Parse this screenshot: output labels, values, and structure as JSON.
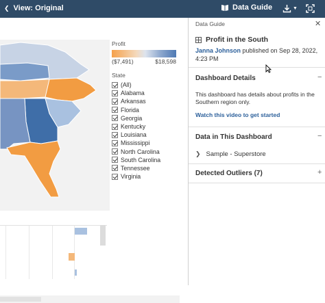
{
  "toolbar": {
    "view_label": "View: Original",
    "data_guide_label": "Data Guide"
  },
  "legend": {
    "profit_title": "Profit",
    "profit_min": "($7,491)",
    "profit_max": "$18,598",
    "state_title": "State",
    "states": [
      "(All)",
      "Alabama",
      "Arkansas",
      "Florida",
      "Georgia",
      "Kentucky",
      "Louisiana",
      "Mississippi",
      "North Carolina",
      "South Carolina",
      "Tennessee",
      "Virginia"
    ]
  },
  "guide": {
    "header": "Data Guide",
    "dashboard_title": "Profit in the South",
    "author": "Janna Johnson",
    "published": " published on Sep 28, 2022, 4:23 PM",
    "details": {
      "title": "Dashboard Details",
      "toggle": "−",
      "text": "This dashboard has details about profits in the Southern region only.",
      "link": "Watch this video to get started"
    },
    "data_section": {
      "title": "Data in This Dashboard",
      "toggle": "−",
      "source": "Sample - Superstore"
    },
    "outliers": {
      "title": "Detected Outliers (7)",
      "toggle": "+"
    }
  },
  "colors": {
    "toolbar_bg": "#2f4b67",
    "link_blue": "#2b5f9a",
    "profit_negative": "#f5a04a",
    "profit_positive": "#4e79b3"
  }
}
